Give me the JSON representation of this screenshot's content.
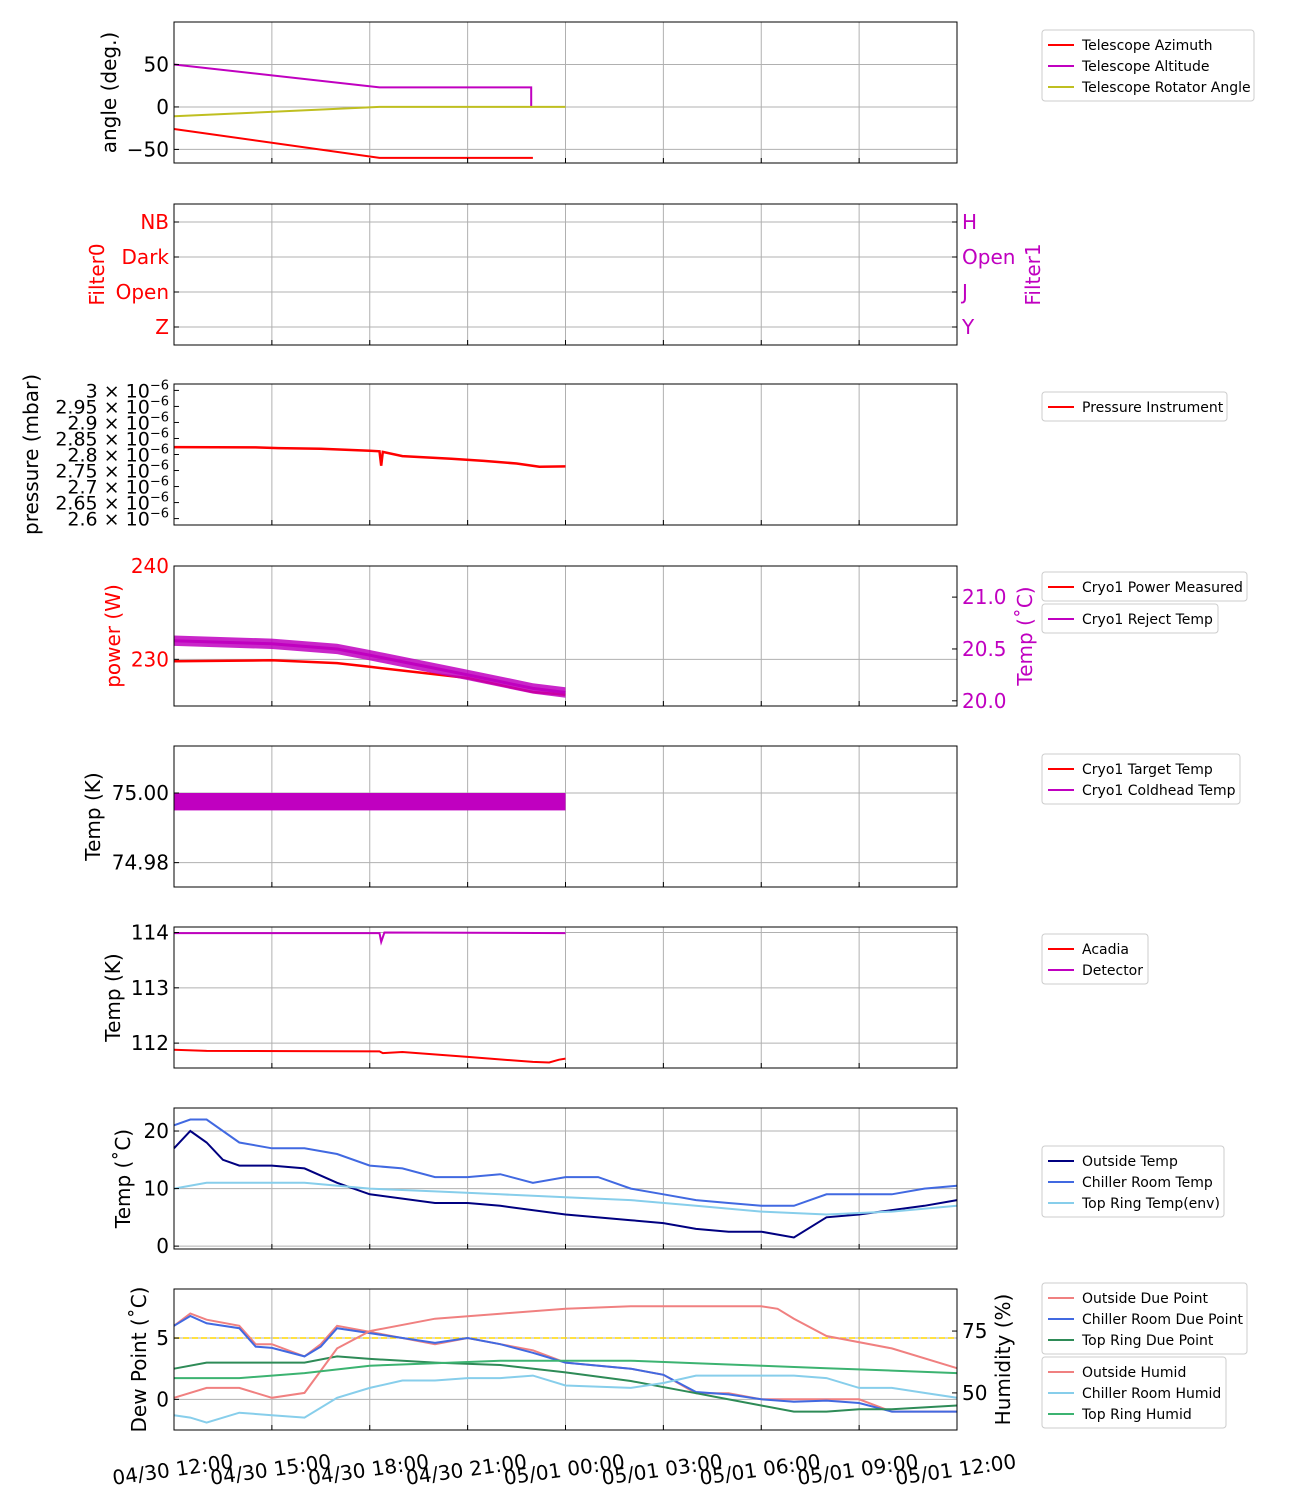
{
  "colors": {
    "red": "#ff0000",
    "magenta": "#c000c0",
    "olive": "#bfbf20",
    "navy": "#000080",
    "royal": "#4169e1",
    "sky": "#87ceeb",
    "salmon": "#f08080",
    "green": "#2e8b57",
    "medgreen": "#3cb371",
    "gold": "#ffd700"
  },
  "x_axis": {
    "tick_labels": [
      "04/30 12:00",
      "04/30 15:00",
      "04/30 18:00",
      "04/30 21:00",
      "05/01 00:00",
      "05/01 03:00",
      "05/01 06:00",
      "05/01 09:00",
      "05/01 12:00"
    ],
    "ticks_hours": [
      0,
      3,
      6,
      9,
      12,
      15,
      18,
      21,
      24
    ],
    "range_hours": [
      0,
      24
    ]
  },
  "chart_data": [
    {
      "id": "angles",
      "type": "line",
      "ylabel": "angle (deg.)",
      "ylim": [
        -66,
        100
      ],
      "yticks": [
        -50,
        0,
        50
      ],
      "legend": [
        "Telescope Azimuth",
        "Telescope Altitude",
        "Telescope Rotator Angle"
      ],
      "series": [
        {
          "name": "Telescope Azimuth",
          "color": "red",
          "x": [
            0,
            6.3,
            10.95,
            10.95,
            11.0
          ],
          "y": [
            -26,
            -60,
            -60,
            -60,
            -60
          ]
        },
        {
          "name": "Telescope Altitude",
          "color": "magenta",
          "x": [
            0,
            6.3,
            10.95,
            10.95
          ],
          "y": [
            50,
            23,
            23,
            1
          ]
        },
        {
          "name": "Telescope Rotator Angle",
          "color": "olive",
          "x": [
            0,
            6.3,
            12.0
          ],
          "y": [
            -11,
            0,
            0
          ]
        }
      ]
    },
    {
      "id": "filters",
      "type": "line",
      "ylabel": "Filter0",
      "ylabel_right": "Filter1",
      "ytick_labels": [
        "Z",
        "Open",
        "Dark",
        "NB"
      ],
      "ytick_labels_right": [
        "Y",
        "J",
        "Open",
        "H"
      ]
    },
    {
      "id": "pressure",
      "type": "line",
      "ylabel": "pressure (mbar)",
      "ylim": [
        2.58e-06,
        3.02e-06
      ],
      "ytick_mantissas": [
        "2.6",
        "2.65",
        "2.7",
        "2.75",
        "2.8",
        "2.85",
        "2.9",
        "2.95",
        "3"
      ],
      "ytick_values": [
        2.6e-06,
        2.65e-06,
        2.7e-06,
        2.75e-06,
        2.8e-06,
        2.85e-06,
        2.9e-06,
        2.95e-06,
        3e-06
      ],
      "ytick_suffix": "× 10",
      "ytick_exponent": "−6",
      "legend": [
        "Pressure Instrument"
      ],
      "series": [
        {
          "name": "Pressure Instrument",
          "color": "red",
          "x": [
            0,
            2.5,
            3.2,
            4.5,
            6.0,
            6.3,
            6.35,
            6.4,
            7.0,
            8.5,
            9.5,
            10.5,
            11.2,
            12.0
          ],
          "y": [
            2.823e-06,
            2.822e-06,
            2.82e-06,
            2.818e-06,
            2.812e-06,
            2.81e-06,
            2.765e-06,
            2.808e-06,
            2.795e-06,
            2.787e-06,
            2.78e-06,
            2.772e-06,
            2.762e-06,
            2.763e-06
          ]
        }
      ]
    },
    {
      "id": "cryo-power",
      "type": "line",
      "ylabel": "power (W)",
      "ylabel_right": "Temp (˚C)",
      "ylim": [
        225,
        240
      ],
      "yticks": [
        230,
        240
      ],
      "ylim_right": [
        19.95,
        21.3
      ],
      "yticks_right": [
        "20.0",
        "20.5",
        "21.0"
      ],
      "legend": [
        "Cryo1 Power Measured",
        "Cryo1 Reject Temp"
      ],
      "series": [
        {
          "name": "Cryo1 Power Measured",
          "color": "red",
          "axis": "left",
          "x": [
            0,
            3,
            5,
            6,
            9,
            11,
            12
          ],
          "y": [
            229.8,
            229.9,
            229.6,
            229.2,
            228.0,
            226.5,
            226.2
          ]
        },
        {
          "name": "Cryo1 Reject Temp",
          "color": "magenta",
          "axis": "right",
          "x": [
            0,
            3,
            5,
            6,
            9,
            11,
            12
          ],
          "y": [
            20.58,
            20.55,
            20.5,
            20.44,
            20.25,
            20.12,
            20.08
          ]
        }
      ]
    },
    {
      "id": "cryo-temp",
      "type": "line",
      "ylabel": "Temp (K)",
      "ylim": [
        74.973,
        75.0135
      ],
      "ytick_labels": [
        "74.98",
        "75.00"
      ],
      "yticks": [
        74.98,
        75.0
      ],
      "legend": [
        "Cryo1 Target Temp",
        "Cryo1 Coldhead Temp"
      ],
      "series": [
        {
          "name": "Cryo1 Coldhead Temp",
          "color": "magenta",
          "band": [
            74.995,
            75.0
          ],
          "x": [
            0,
            12
          ]
        }
      ]
    },
    {
      "id": "detector",
      "type": "line",
      "ylabel": "Temp (K)",
      "ylim": [
        111.55,
        114.1
      ],
      "yticks": [
        112,
        113,
        114
      ],
      "legend": [
        "Acadia",
        "Detector"
      ],
      "series": [
        {
          "name": "Acadia",
          "color": "red",
          "x": [
            0,
            1,
            6.3,
            6.4,
            7,
            9,
            11,
            11.5,
            11.8,
            12
          ],
          "y": [
            111.88,
            111.86,
            111.85,
            111.82,
            111.84,
            111.75,
            111.66,
            111.65,
            111.7,
            111.72
          ]
        },
        {
          "name": "Detector",
          "color": "magenta",
          "x": [
            0,
            6.3,
            6.35,
            6.45,
            12
          ],
          "y": [
            113.99,
            113.99,
            113.83,
            114.0,
            113.99
          ]
        }
      ]
    },
    {
      "id": "env-temp",
      "type": "line",
      "ylabel": "Temp (˚C)",
      "ylim": [
        -0.5,
        24
      ],
      "yticks": [
        0,
        10,
        20
      ],
      "legend": [
        "Outside Temp",
        "Chiller Room Temp",
        "Top Ring Temp(env)"
      ],
      "series": [
        {
          "name": "Outside Temp",
          "color": "navy",
          "x": [
            0,
            0.5,
            1,
            1.5,
            2,
            3,
            4,
            5,
            6,
            8,
            9,
            10,
            12,
            14,
            15,
            16,
            17,
            18,
            19,
            20,
            21,
            23,
            24
          ],
          "y": [
            17,
            20,
            18,
            15,
            14,
            14,
            13.5,
            11,
            9,
            7.5,
            7.5,
            7,
            5.5,
            4.5,
            4,
            3,
            2.5,
            2.5,
            1.5,
            5,
            5.5,
            7,
            8
          ]
        },
        {
          "name": "Chiller Room Temp",
          "color": "royal",
          "x": [
            0,
            0.5,
            1,
            2,
            3,
            4,
            5,
            6,
            7,
            8,
            9,
            10,
            11,
            12,
            13,
            14,
            15,
            16,
            17,
            18,
            19,
            20,
            21,
            22,
            23,
            24
          ],
          "y": [
            21,
            22,
            22,
            18,
            17,
            17,
            16,
            14,
            13.5,
            12,
            12,
            12.5,
            11,
            12,
            12,
            10,
            9,
            8,
            7.5,
            7,
            7,
            9,
            9,
            9,
            10,
            10.5
          ]
        },
        {
          "name": "Top Ring Temp(env)",
          "color": "sky",
          "x": [
            0,
            1,
            4,
            6,
            8,
            10,
            12,
            14,
            16,
            18,
            20,
            22,
            24
          ],
          "y": [
            10,
            11,
            11,
            10,
            9.5,
            9,
            8.5,
            8,
            7,
            6,
            5.5,
            6,
            7
          ]
        }
      ]
    },
    {
      "id": "dew",
      "type": "line",
      "ylabel": "Dew Point (˚C)",
      "ylabel_right": "Humidity (%)",
      "ylim": [
        -2.5,
        9
      ],
      "yticks": [
        0,
        5
      ],
      "ylim_right": [
        35,
        92
      ],
      "yticks_right": [
        50,
        75
      ],
      "hline": 5,
      "legend_groups": [
        [
          "Outside Due Point",
          "Chiller Room Due Point",
          "Top Ring Due Point"
        ],
        [
          "Outside Humid",
          "Chiller Room Humid",
          "Top Ring Humid"
        ]
      ],
      "series": [
        {
          "name": "Outside Due Point",
          "color": "salmon",
          "axis": "left",
          "x": [
            0,
            0.5,
            1,
            2,
            2.5,
            3,
            4,
            4.5,
            5,
            6,
            8,
            9,
            10,
            11,
            12,
            14,
            15,
            16,
            17,
            18,
            19,
            20,
            21,
            22,
            23,
            24
          ],
          "y": [
            6,
            7,
            6.5,
            6,
            4.5,
            4.5,
            3.5,
            4.5,
            6,
            5.5,
            4.5,
            5,
            4.5,
            4,
            3,
            2.5,
            2,
            0.5,
            0.5,
            0,
            0,
            0,
            0,
            -1,
            -1,
            -1
          ]
        },
        {
          "name": "Chiller Room Due Point",
          "color": "royal",
          "axis": "left",
          "x": [
            0,
            0.5,
            1,
            2,
            2.5,
            3,
            4,
            4.5,
            5,
            6,
            8,
            9,
            10,
            11,
            12,
            14,
            15,
            16,
            17,
            18,
            19,
            20,
            21,
            22,
            23,
            24
          ],
          "y": [
            6,
            6.8,
            6.2,
            5.8,
            4.3,
            4.2,
            3.5,
            4.3,
            5.8,
            5.4,
            4.6,
            5,
            4.5,
            3.8,
            3,
            2.5,
            2,
            0.6,
            0.4,
            0,
            -0.2,
            -0.1,
            -0.3,
            -1,
            -1,
            -1
          ]
        },
        {
          "name": "Top Ring Due Point",
          "color": "green",
          "axis": "left",
          "x": [
            0,
            1,
            2,
            3,
            4,
            5,
            6,
            8,
            10,
            12,
            14,
            16,
            18,
            19,
            20,
            21,
            22,
            24
          ],
          "y": [
            2.5,
            3,
            3,
            3,
            3,
            3.5,
            3.3,
            3,
            2.8,
            2.2,
            1.5,
            0.5,
            -0.5,
            -1,
            -1,
            -0.8,
            -0.8,
            -0.5
          ]
        },
        {
          "name": "Outside Humid",
          "color": "salmon",
          "axis": "right",
          "x": [
            0,
            1,
            2,
            3,
            4,
            5,
            6,
            8,
            10,
            12,
            14,
            16,
            18,
            18.5,
            19,
            20,
            22,
            24
          ],
          "y": [
            48,
            52,
            52,
            48,
            50,
            68,
            75,
            80,
            82,
            84,
            85,
            85,
            85,
            84,
            80,
            73,
            68,
            60
          ]
        },
        {
          "name": "Chiller Room Humid",
          "color": "sky",
          "axis": "right",
          "x": [
            0,
            0.5,
            1,
            2,
            3,
            4,
            5,
            6,
            7,
            8,
            9,
            10,
            11,
            12,
            14,
            15,
            16,
            17,
            18,
            19,
            20,
            21,
            22,
            23,
            24
          ],
          "y": [
            41,
            40,
            38,
            42,
            41,
            40,
            48,
            52,
            55,
            55,
            56,
            56,
            57,
            53,
            52,
            54,
            57,
            57,
            57,
            57,
            56,
            52,
            52,
            50,
            48
          ]
        },
        {
          "name": "Top Ring Humid",
          "color": "medgreen",
          "axis": "right",
          "x": [
            0,
            2,
            4,
            6,
            8,
            10,
            12,
            14,
            16,
            18,
            20,
            22,
            24
          ],
          "y": [
            56,
            56,
            58,
            61,
            62,
            63,
            63,
            63,
            62,
            61,
            60,
            59,
            58
          ]
        }
      ]
    }
  ]
}
